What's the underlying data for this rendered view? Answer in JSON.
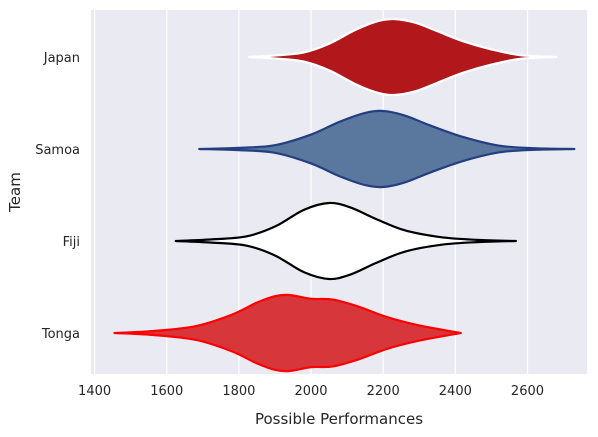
{
  "chart_data": {
    "type": "violin",
    "orientation": "horizontal",
    "xlabel": "Possible Performances",
    "ylabel": "Team",
    "xlim": [
      1390,
      2765
    ],
    "x_ticks": [
      1400,
      1600,
      1800,
      2000,
      2200,
      2400,
      2600
    ],
    "grid": true,
    "background": "#eaeaf2",
    "categories": [
      "Japan",
      "Samoa",
      "Fiji",
      "Tonga"
    ],
    "series": [
      {
        "name": "Japan",
        "fill": "#b2171b",
        "stroke": "#ffffff",
        "profile": [
          [
            1828,
            0.0
          ],
          [
            1900,
            0.04
          ],
          [
            1980,
            0.12
          ],
          [
            2050,
            0.35
          ],
          [
            2120,
            0.7
          ],
          [
            2180,
            0.93
          ],
          [
            2230,
            1.0
          ],
          [
            2290,
            0.9
          ],
          [
            2350,
            0.68
          ],
          [
            2420,
            0.42
          ],
          [
            2500,
            0.2
          ],
          [
            2580,
            0.05
          ],
          [
            2680,
            0.0
          ]
        ]
      },
      {
        "name": "Samoa",
        "fill": "#5a779d",
        "stroke": "#233f81",
        "profile": [
          [
            1690,
            0.0
          ],
          [
            1800,
            0.03
          ],
          [
            1900,
            0.1
          ],
          [
            2000,
            0.38
          ],
          [
            2080,
            0.72
          ],
          [
            2150,
            0.95
          ],
          [
            2200,
            1.0
          ],
          [
            2260,
            0.88
          ],
          [
            2330,
            0.62
          ],
          [
            2420,
            0.32
          ],
          [
            2520,
            0.09
          ],
          [
            2620,
            0.02
          ],
          [
            2730,
            0.0
          ]
        ]
      },
      {
        "name": "Fiji",
        "fill": "#ffffff",
        "stroke": "#000000",
        "profile": [
          [
            1625,
            0.0
          ],
          [
            1720,
            0.04
          ],
          [
            1820,
            0.12
          ],
          [
            1900,
            0.38
          ],
          [
            1980,
            0.82
          ],
          [
            2050,
            1.0
          ],
          [
            2110,
            0.88
          ],
          [
            2180,
            0.58
          ],
          [
            2260,
            0.28
          ],
          [
            2360,
            0.1
          ],
          [
            2460,
            0.03
          ],
          [
            2568,
            0.0
          ]
        ]
      },
      {
        "name": "Tonga",
        "fill": "#d7363b",
        "stroke": "#ff0000",
        "profile": [
          [
            1455,
            0.0
          ],
          [
            1560,
            0.05
          ],
          [
            1680,
            0.18
          ],
          [
            1780,
            0.48
          ],
          [
            1850,
            0.8
          ],
          [
            1900,
            0.97
          ],
          [
            1940,
            1.0
          ],
          [
            2000,
            0.9
          ],
          [
            2060,
            0.88
          ],
          [
            2130,
            0.7
          ],
          [
            2210,
            0.42
          ],
          [
            2300,
            0.2
          ],
          [
            2415,
            0.0
          ]
        ]
      }
    ]
  }
}
